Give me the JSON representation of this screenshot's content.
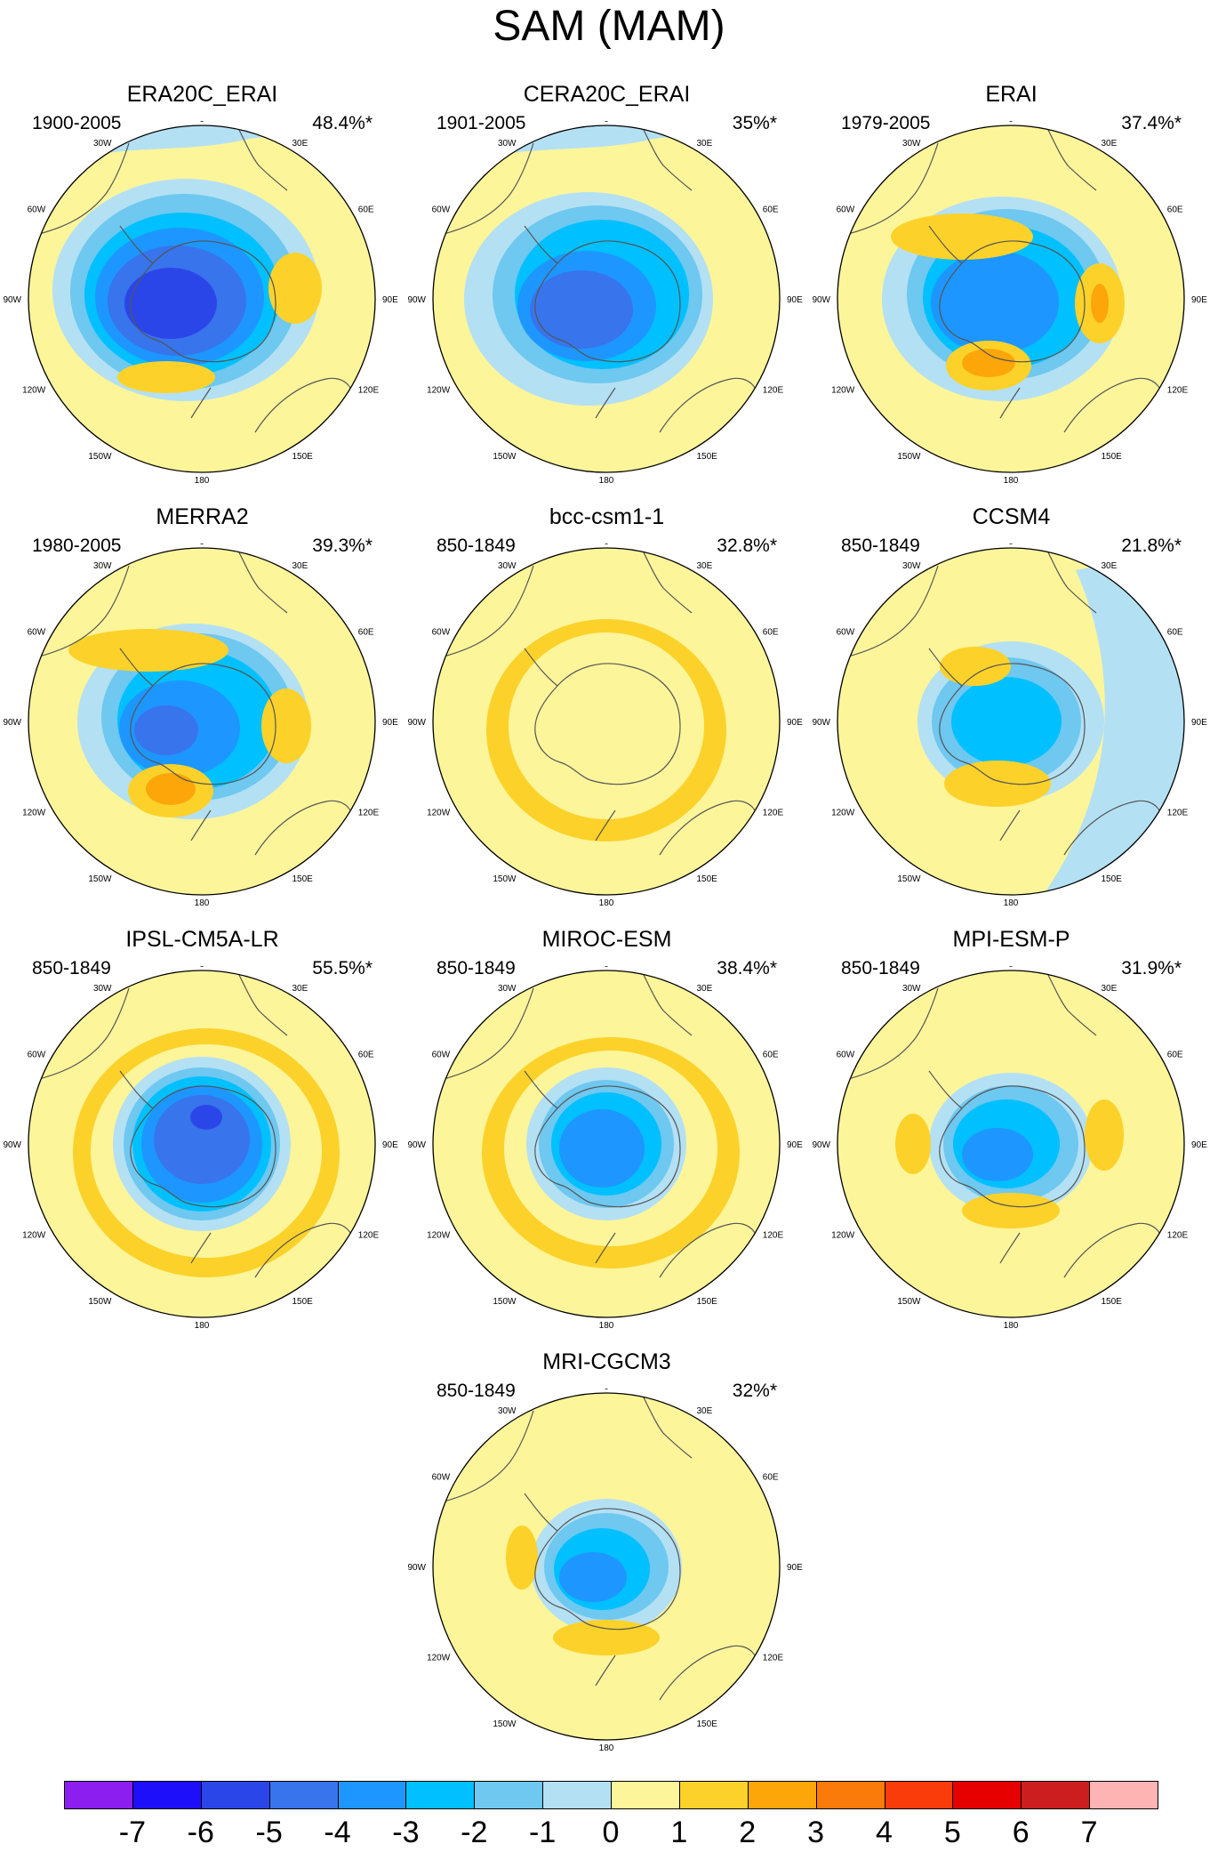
{
  "title": "SAM (MAM)",
  "axis_labels": {
    "lon_0": "0",
    "lon_30e": "30E",
    "lon_60e": "60E",
    "lon_90e": "90E",
    "lon_120e": "120E",
    "lon_150e": "150E",
    "lon_180": "180",
    "lon_150w": "150W",
    "lon_120w": "120W",
    "lon_90w": "90W",
    "lon_60w": "60W",
    "lon_30w": "30W"
  },
  "panels": [
    {
      "name": "ERA20C_ERAI",
      "period": "1900-2005",
      "variance": "48.4%*"
    },
    {
      "name": "CERA20C_ERAI",
      "period": "1901-2005",
      "variance": "35%*"
    },
    {
      "name": "ERAI",
      "period": "1979-2005",
      "variance": "37.4%*"
    },
    {
      "name": "MERRA2",
      "period": "1980-2005",
      "variance": "39.3%*"
    },
    {
      "name": "bcc-csm1-1",
      "period": "850-1849",
      "variance": "32.8%*"
    },
    {
      "name": "CCSM4",
      "period": "850-1849",
      "variance": "21.8%*"
    },
    {
      "name": "IPSL-CM5A-LR",
      "period": "850-1849",
      "variance": "55.5%*"
    },
    {
      "name": "MIROC-ESM",
      "period": "850-1849",
      "variance": "38.4%*"
    },
    {
      "name": "MPI-ESM-P",
      "period": "850-1849",
      "variance": "31.9%*"
    },
    {
      "name": "MRI-CGCM3",
      "period": "850-1849",
      "variance": "32%*"
    }
  ],
  "colorbar": {
    "labels": [
      "-7",
      "-6",
      "-5",
      "-4",
      "-3",
      "-2",
      "-1",
      "0",
      "1",
      "2",
      "3",
      "4",
      "5",
      "6",
      "7"
    ],
    "colors": [
      "#8c1ef0",
      "#1e0ffa",
      "#2b46e8",
      "#3874ec",
      "#1e96ff",
      "#00c0ff",
      "#6ec8f0",
      "#b4e0f4",
      "#fcf59a",
      "#fcd22a",
      "#fca60a",
      "#fa7a0a",
      "#fa3c0a",
      "#e60000",
      "#cc1e1e",
      "#ffb4b4"
    ]
  },
  "palette": {
    "ocean_land_neutral": "#fcf59a",
    "neg_1": "#b4e0f4",
    "neg_2": "#6ec8f0",
    "neg_3": "#00c0ff",
    "neg_4": "#1e96ff",
    "neg_5": "#3874ec",
    "neg_6": "#2b46e8",
    "pos_1": "#fcd22a",
    "pos_2": "#fca60a",
    "coast": "#555555"
  }
}
